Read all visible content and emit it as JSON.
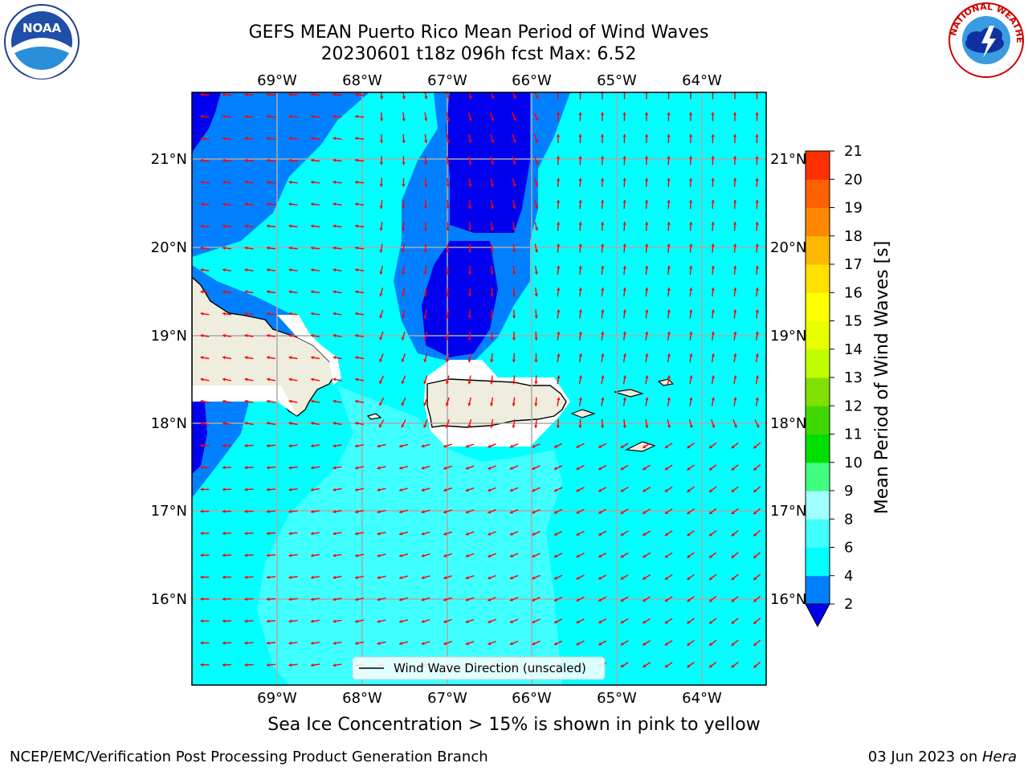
{
  "title": {
    "line1": "GEFS MEAN Puerto Rico Mean Period of Wind Waves",
    "line2": "20230601 t18z 096h fcst   Max: 6.52"
  },
  "logos": {
    "left": "noaa-logo",
    "right": "nws-logo"
  },
  "map": {
    "lon_labels": [
      "69°W",
      "68°W",
      "67°W",
      "66°W",
      "65°W",
      "64°W"
    ],
    "lat_labels": [
      "21°N",
      "20°N",
      "19°N",
      "18°N",
      "17°N",
      "16°N"
    ],
    "legend_label": "Wind Wave Direction (unscaled)",
    "arrow_color": "#ff0000",
    "colors": {
      "land": "#efedde",
      "band_2_4": "#0080ff",
      "band_lt_2": "#0000ee",
      "band_4_6": "#00ffff",
      "band_6_8": "#40ffff"
    }
  },
  "colorbar": {
    "label": "Mean Period of Wind Waves [s]",
    "ticks": [
      "2",
      "4",
      "6",
      "8",
      "9",
      "10",
      "11",
      "12",
      "13",
      "14",
      "15",
      "16",
      "17",
      "18",
      "19",
      "20",
      "21"
    ],
    "colors": [
      "#0080ff",
      "#00ffff",
      "#40ffff",
      "#a0ffff",
      "#40ff80",
      "#00e000",
      "#40d800",
      "#80e000",
      "#c0ff00",
      "#e8ff00",
      "#ffff00",
      "#ffe000",
      "#ffb800",
      "#ff8800",
      "#ff6000",
      "#ff3000",
      "#ff0000"
    ]
  },
  "subtitle": "Sea Ice Concentration > 15% is shown in pink to yellow",
  "footer": {
    "left": "NCEP/EMC/Verification Post Processing Product Generation Branch",
    "date": "03 Jun 2023 on ",
    "machine": "Hera"
  }
}
